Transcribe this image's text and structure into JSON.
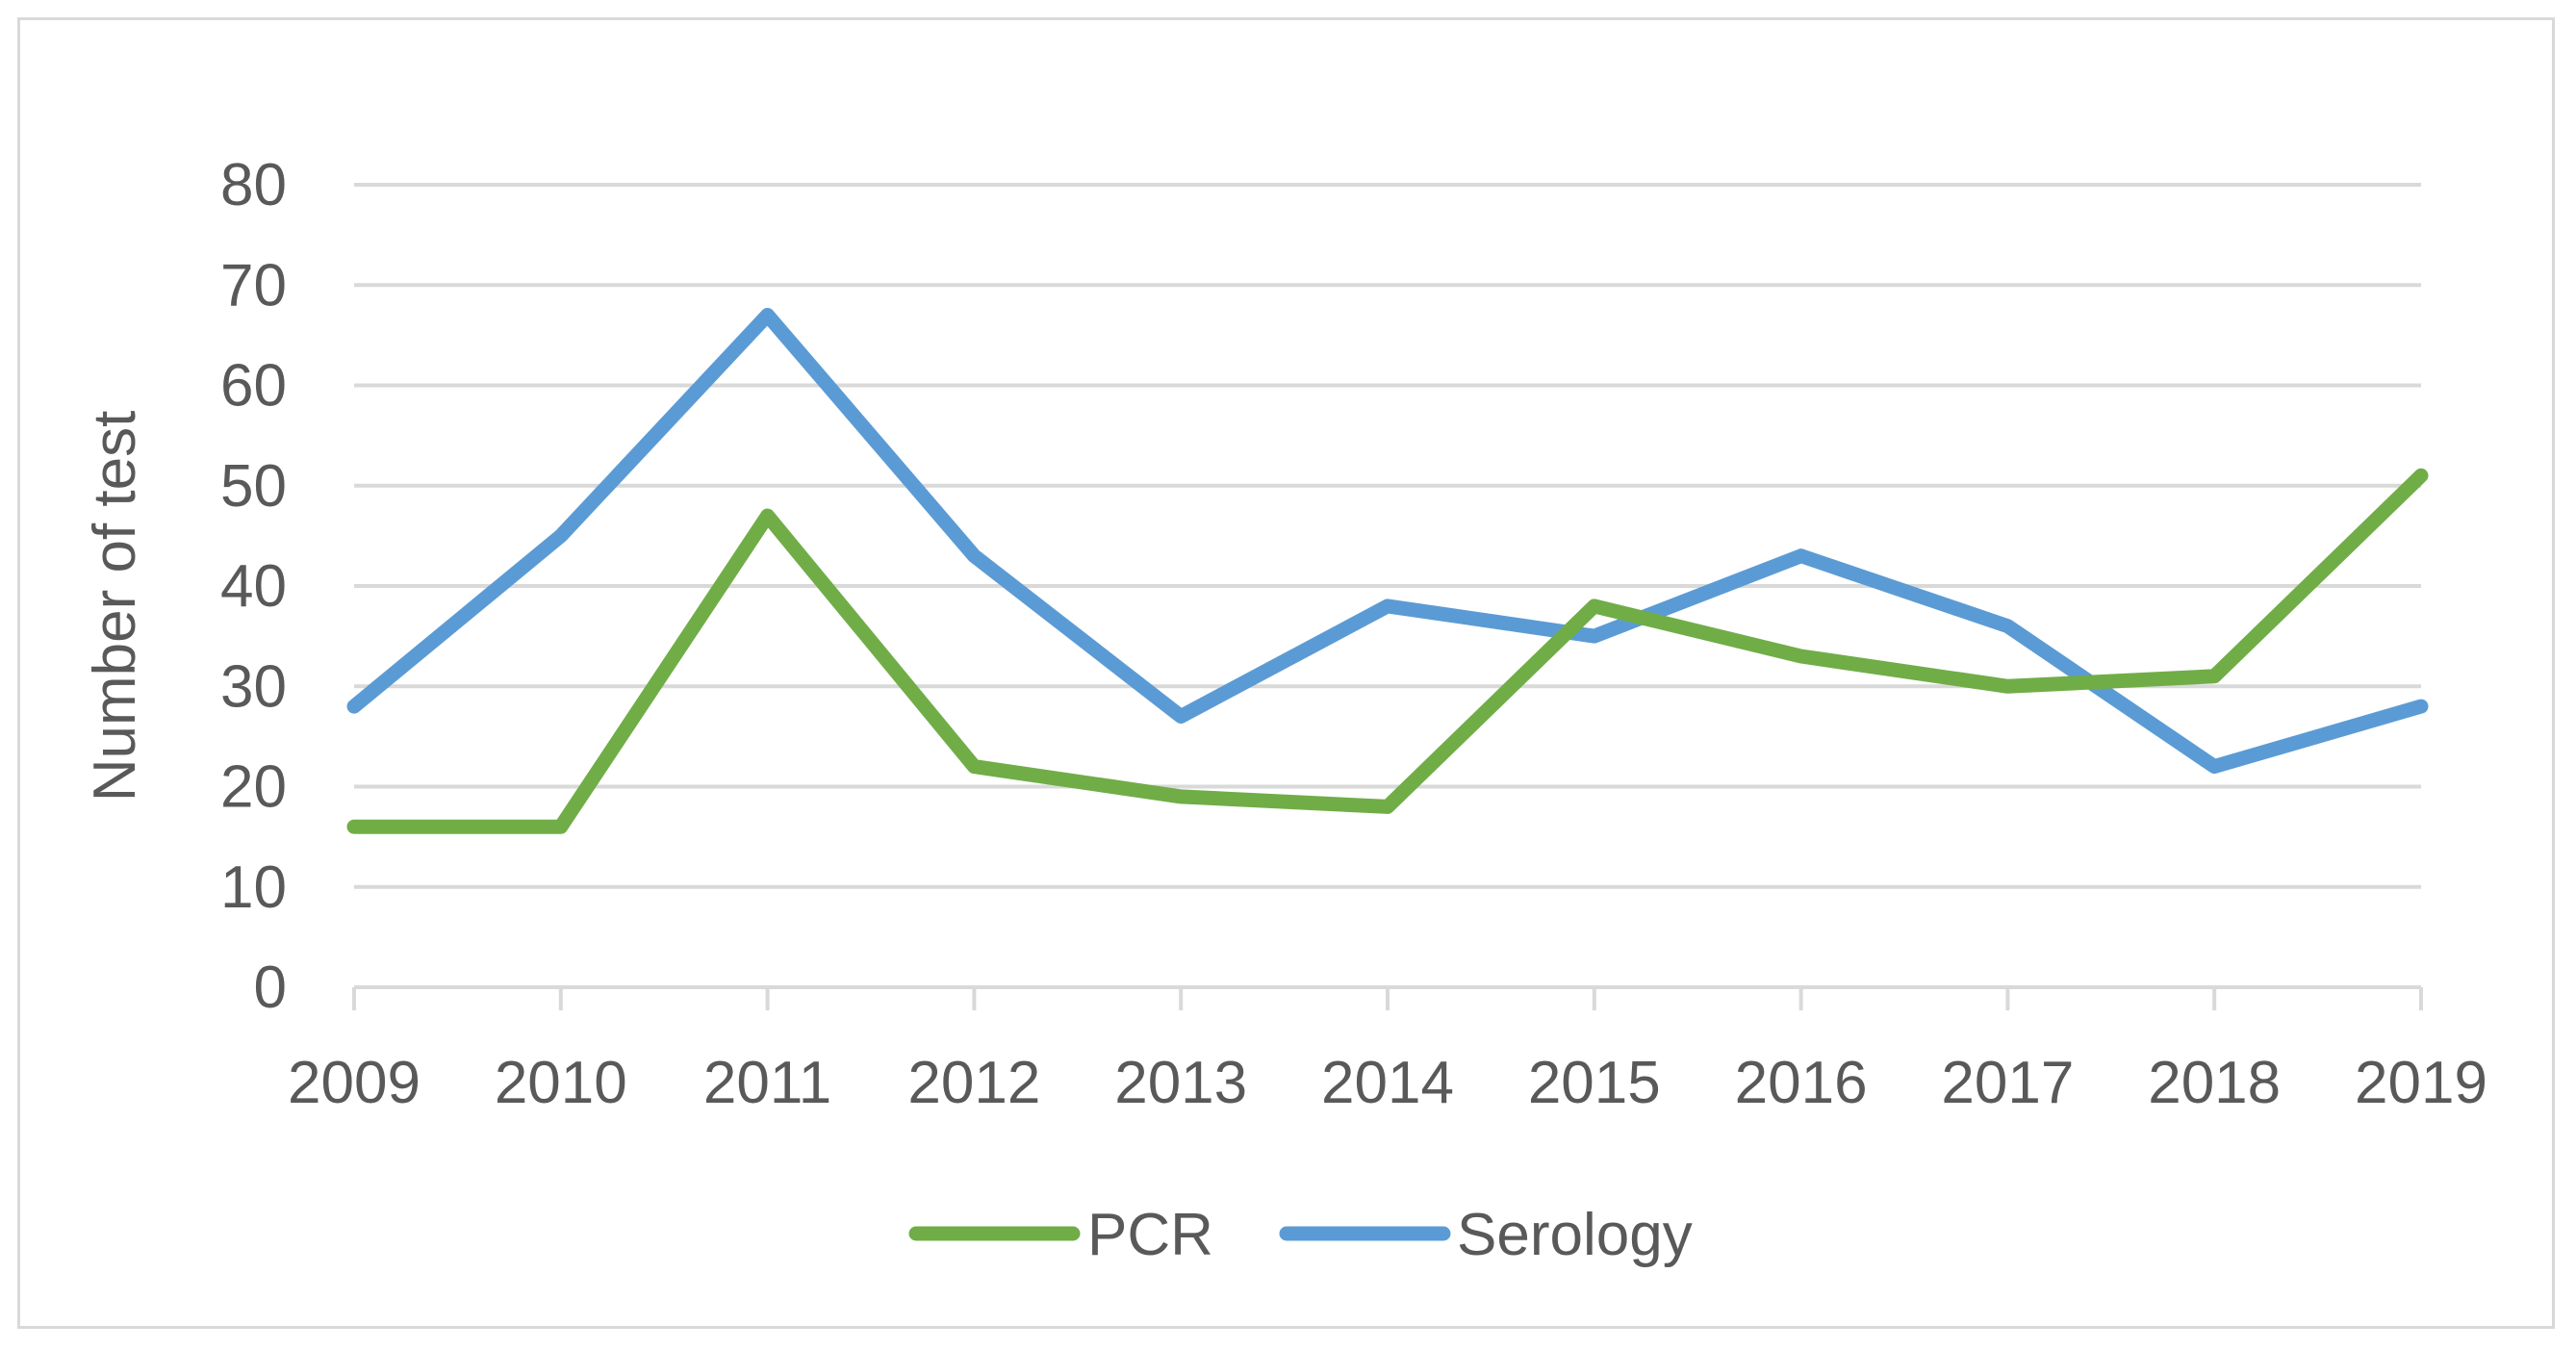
{
  "chart_data": {
    "type": "line",
    "title": "",
    "xlabel": "",
    "ylabel": "Number of test",
    "categories": [
      "2009",
      "2010",
      "2011",
      "2012",
      "2013",
      "2014",
      "2015",
      "2016",
      "2017",
      "2018",
      "2019"
    ],
    "y_ticks": [
      "0",
      "10",
      "20",
      "30",
      "40",
      "50",
      "60",
      "70",
      "80"
    ],
    "ylim": [
      0,
      80
    ],
    "grid": "horizontal",
    "legend_position": "bottom",
    "series": [
      {
        "name": "PCR",
        "color": "#70ad47",
        "values": [
          16,
          16,
          47,
          22,
          19,
          18,
          38,
          33,
          30,
          31,
          51
        ]
      },
      {
        "name": "Serology",
        "color": "#5b9bd5",
        "values": [
          28,
          45,
          67,
          43,
          27,
          38,
          35,
          43,
          36,
          22,
          28
        ]
      }
    ]
  }
}
